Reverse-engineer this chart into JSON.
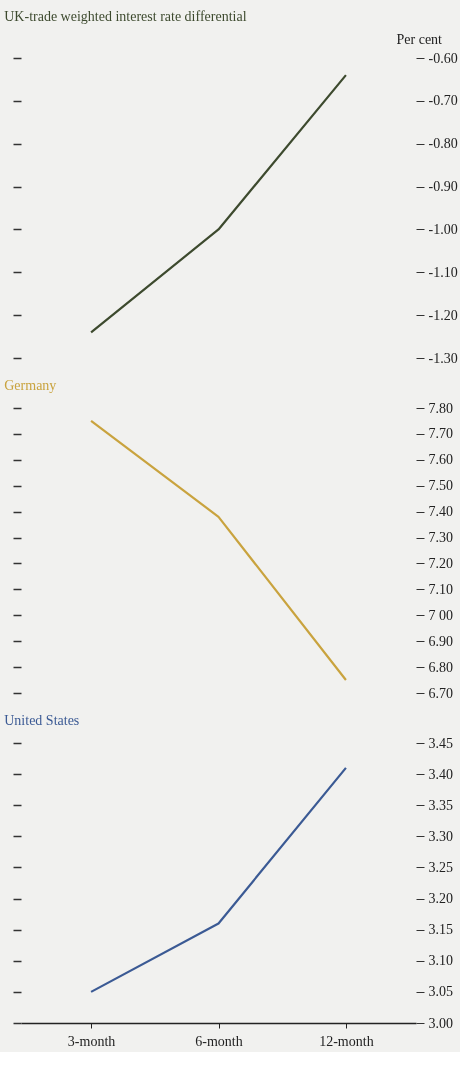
{
  "chart_data": [
    {
      "type": "line",
      "title": "UK-trade weighted  interest rate differential",
      "ylabel": "Per cent",
      "categories": [
        null,
        null,
        null
      ],
      "series": [
        {
          "color": "#3d4a2e",
          "values": [
            -1.24,
            -1.0,
            -0.64
          ]
        }
      ],
      "ylim": [
        -1.3,
        -0.6
      ],
      "yticks": [
        {
          "value": -0.6,
          "label": "-0.60"
        },
        {
          "value": -0.7,
          "label": "-0.70"
        },
        {
          "value": -0.8,
          "label": "-0.80"
        },
        {
          "value": -0.9,
          "label": "-0.90"
        },
        {
          "value": -1.0,
          "label": "-1.00"
        },
        {
          "value": -1.1,
          "label": "-1.10"
        },
        {
          "value": -1.2,
          "label": "-1.20"
        },
        {
          "value": -1.3,
          "label": "-1.30"
        }
      ],
      "grid": false,
      "tick_labels": "y"
    },
    {
      "type": "line",
      "title": "Germany",
      "categories": [
        null,
        null,
        null
      ],
      "series": [
        {
          "color": "#c9a33e",
          "values": [
            7.75,
            7.38,
            6.75
          ]
        }
      ],
      "ylim": [
        6.7,
        7.8
      ],
      "yticks": [
        {
          "value": 7.8,
          "label": "7.80"
        },
        {
          "value": 7.7,
          "label": "7.70"
        },
        {
          "value": 7.6,
          "label": "7.60"
        },
        {
          "value": 7.5,
          "label": "7.50"
        },
        {
          "value": 7.4,
          "label": "7.40"
        },
        {
          "value": 7.3,
          "label": "7.30"
        },
        {
          "value": 7.2,
          "label": "7.20"
        },
        {
          "value": 7.1,
          "label": "7.10"
        },
        {
          "value": 7.0,
          "label": "7 00"
        },
        {
          "value": 6.9,
          "label": "6.90"
        },
        {
          "value": 6.8,
          "label": "6.80"
        },
        {
          "value": 6.7,
          "label": "6.70"
        }
      ],
      "grid": false,
      "tick_labels": "y"
    },
    {
      "type": "line",
      "title": "United States",
      "categories": [
        "3-month",
        "6-month",
        "12-month"
      ],
      "series": [
        {
          "color": "#3b5a94",
          "values": [
            3.05,
            3.16,
            3.41
          ]
        }
      ],
      "ylim": [
        3.0,
        3.45
      ],
      "yticks": [
        {
          "value": 3.45,
          "label": "3.45"
        },
        {
          "value": 3.4,
          "label": "3.40"
        },
        {
          "value": 3.35,
          "label": "3.35"
        },
        {
          "value": 3.3,
          "label": "3.30"
        },
        {
          "value": 3.25,
          "label": "3.25"
        },
        {
          "value": 3.2,
          "label": "3.20"
        },
        {
          "value": 3.15,
          "label": "3.15"
        },
        {
          "value": 3.1,
          "label": "3.10"
        },
        {
          "value": 3.05,
          "label": "3.05"
        },
        {
          "value": 3.0,
          "label": "3.00"
        }
      ],
      "grid": false
    }
  ]
}
